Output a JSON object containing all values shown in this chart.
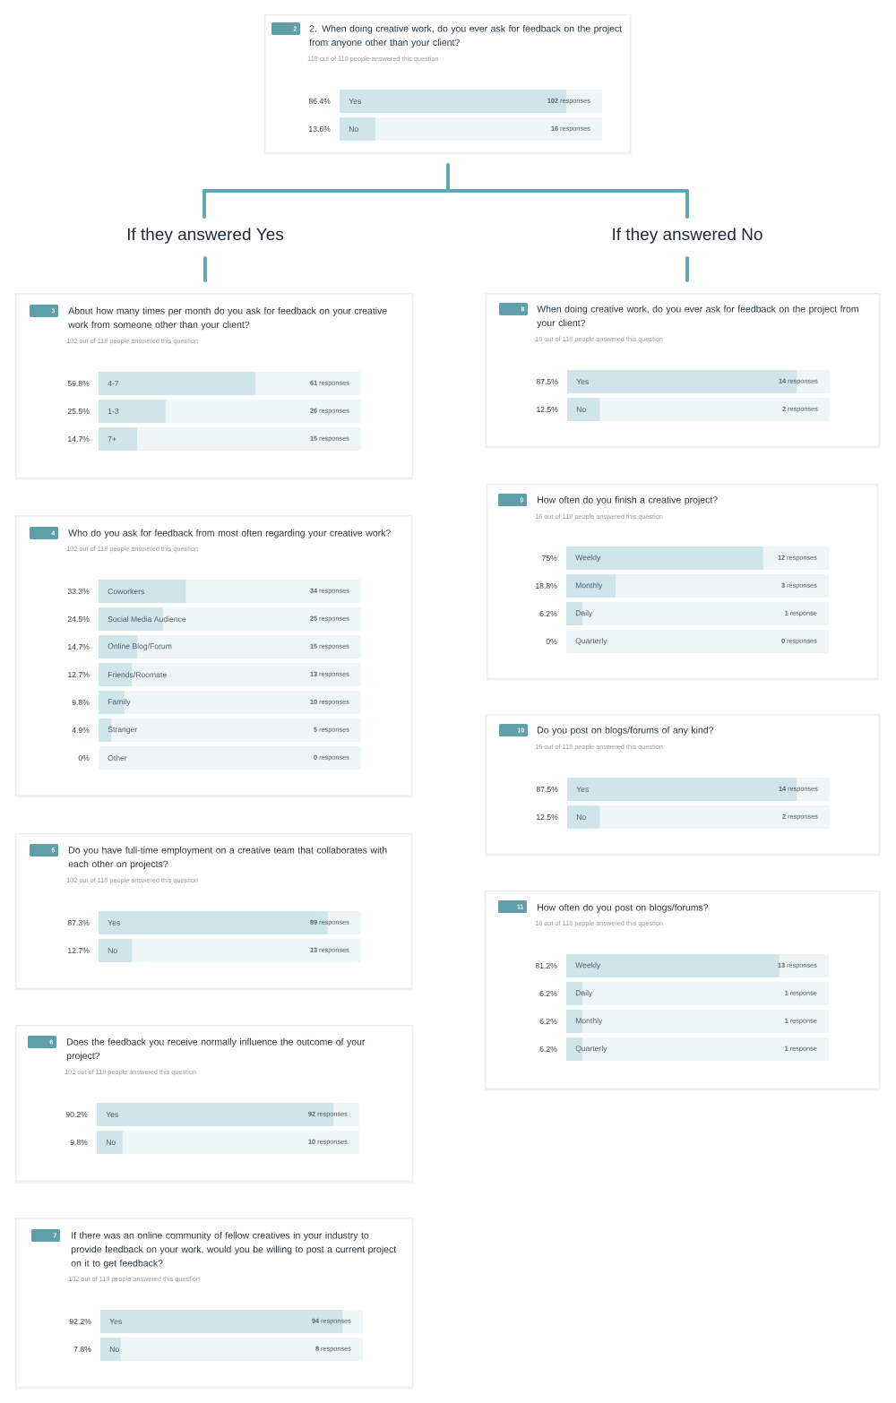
{
  "chart_data": [
    {
      "type": "bar",
      "orientation": "horizontal",
      "title": "2. When doing creative work, do you ever ask for feedback on the project from anyone other than your client?",
      "subtitle": "118 out of 118 people answered this question",
      "categories": [
        "Yes",
        "No"
      ],
      "values": [
        86.4,
        13.6
      ],
      "value_labels": [
        "86.4%",
        "13.6%"
      ],
      "color": "#d0e5ea",
      "xlim": [
        0,
        100
      ],
      "tick_labels": "y",
      "annotations": [
        "2",
        "If they answered Yes",
        "If they answered No",
        "**102** responses",
        "**16** responses"
      ]
    },
    {
      "type": "bar",
      "orientation": "horizontal",
      "title": "About how many times per month do you ask for feedback on your creative work from someone other than your client?",
      "subtitle": "102 out of 118 people answered this question",
      "categories": [
        "4-7",
        "1-3",
        "7+"
      ],
      "values": [
        59.8,
        25.5,
        14.7
      ],
      "value_labels": [
        "59.8%",
        "25.5%",
        "14.7%"
      ],
      "color": "#d0e5ea",
      "xlim": [
        0,
        100
      ],
      "tick_labels": "y",
      "annotations": [
        "3",
        "**61** responses",
        "**26** responses",
        "**15** responses"
      ]
    },
    {
      "type": "bar",
      "orientation": "horizontal",
      "title": "Who do you ask for feedback from most often regarding your creative work?",
      "subtitle": "102 out of 118 people answered this question",
      "categories": [
        "Coworkers",
        "Social Media Audience",
        "Online Blog/Forum",
        "Friends/Roomate",
        "Family",
        "Stranger",
        "Other"
      ],
      "values": [
        33.3,
        24.5,
        14.7,
        12.7,
        9.8,
        4.9,
        0
      ],
      "value_labels": [
        "33.3%",
        "24.5%",
        "14.7%",
        "12.7%",
        "9.8%",
        "4.9%",
        "0%"
      ],
      "color": "#d0e5ea",
      "xlim": [
        0,
        100
      ],
      "tick_labels": "y",
      "annotations": [
        "4",
        "**34** responses",
        "**25** responses",
        "**15** responses",
        "**13** responses",
        "**10** responses",
        "**5** responses",
        "**0** responses"
      ]
    },
    {
      "type": "bar",
      "orientation": "horizontal",
      "title": "Do you have full-time employment on a creative team that collaborates with each other on projects?",
      "subtitle": "102 out of 118 people answered this question",
      "categories": [
        "Yes",
        "No"
      ],
      "values": [
        87.3,
        12.7
      ],
      "value_labels": [
        "87.3%",
        "12.7%"
      ],
      "color": "#d0e5ea",
      "xlim": [
        0,
        100
      ],
      "tick_labels": "y",
      "annotations": [
        "5",
        "**89** responses",
        "**13** responses"
      ]
    },
    {
      "type": "bar",
      "orientation": "horizontal",
      "title": "Does the feedback you receive normally influence the outcome of your project?",
      "subtitle": "102 out of 118 people answered this question",
      "categories": [
        "Yes",
        "No"
      ],
      "values": [
        90.2,
        9.8
      ],
      "value_labels": [
        "90.2%",
        "9.8%"
      ],
      "color": "#d0e5ea",
      "xlim": [
        0,
        100
      ],
      "tick_labels": "y",
      "annotations": [
        "6",
        "**92** responses",
        "**10** responses"
      ]
    },
    {
      "type": "bar",
      "orientation": "horizontal",
      "title": "If there was an online community of fellow creatives in your industry to provide feedback on your work, would you be willing to post a current project on it to get feedback?",
      "subtitle": "102 out of 118 people answered this question",
      "categories": [
        "Yes",
        "No"
      ],
      "values": [
        92.2,
        7.8
      ],
      "value_labels": [
        "92.2%",
        "7.8%"
      ],
      "color": "#d0e5ea",
      "xlim": [
        0,
        100
      ],
      "tick_labels": "y",
      "annotations": [
        "7",
        "**94** responses",
        "**8** responses"
      ]
    },
    {
      "type": "bar",
      "orientation": "horizontal",
      "title": "When doing creative work, do you ever ask for feedback on the project from your client?",
      "subtitle": "16 out of 118 people answered this question",
      "categories": [
        "Yes",
        "No"
      ],
      "values": [
        87.5,
        12.5
      ],
      "value_labels": [
        "87.5%",
        "12.5%"
      ],
      "color": "#d0e5ea",
      "xlim": [
        0,
        100
      ],
      "tick_labels": "y",
      "annotations": [
        "8",
        "**14** responses",
        "**2** responses"
      ]
    },
    {
      "type": "bar",
      "orientation": "horizontal",
      "title": "How often do you finish a creative project?",
      "subtitle": "16 out of 118 people answered this question",
      "categories": [
        "Weekly",
        "Monthly",
        "Daily",
        "Quarterly"
      ],
      "values": [
        75,
        18.8,
        6.2,
        0
      ],
      "value_labels": [
        "75%",
        "18.8%",
        "6.2%",
        "0%"
      ],
      "color": "#d0e5ea",
      "xlim": [
        0,
        100
      ],
      "tick_labels": "y",
      "annotations": [
        "9",
        "**12** responses",
        "**3** responses",
        "**1** response",
        "**0** responses"
      ]
    },
    {
      "type": "bar",
      "orientation": "horizontal",
      "title": "Do you post on blogs/forums of any kind?",
      "subtitle": "16 out of 118 people answered this question",
      "categories": [
        "Yes",
        "No"
      ],
      "values": [
        87.5,
        12.5
      ],
      "value_labels": [
        "87.5%",
        "12.5%"
      ],
      "color": "#d0e5ea",
      "xlim": [
        0,
        100
      ],
      "tick_labels": "y",
      "annotations": [
        "10",
        "**14** responses",
        "**2** responses"
      ]
    },
    {
      "type": "bar",
      "orientation": "horizontal",
      "title": "How often do you post on blogs/forums?",
      "subtitle": "16 out of 118 people answered this question",
      "categories": [
        "Weekly",
        "Daily",
        "Monthly",
        "Quarterly"
      ],
      "values": [
        81.2,
        6.2,
        6.2,
        6.2
      ],
      "value_labels": [
        "81.2%",
        "6.2%",
        "6.2%",
        "6.2%"
      ],
      "color": "#d0e5ea",
      "xlim": [
        0,
        100
      ],
      "tick_labels": "y",
      "annotations": [
        "11",
        "**13** responses",
        "**1** response",
        "**1** response",
        "**1** response"
      ]
    }
  ]
}
